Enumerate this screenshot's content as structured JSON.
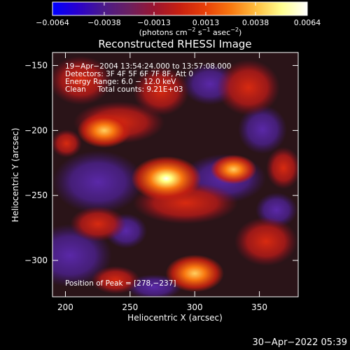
{
  "colorbar": {
    "colors": [
      "#0000ff",
      "#2a00cc",
      "#4a1a8a",
      "#6a2060",
      "#9a1530",
      "#c82010",
      "#e84008",
      "#f87810",
      "#ffc040",
      "#ffff90",
      "#ffffff"
    ],
    "tick_labels": [
      "−0.0064",
      "−0.0038",
      "−0.0013",
      "0.0013",
      "0.0038",
      "0.0064"
    ],
    "ticks": [
      -0.0064,
      -0.0038,
      -0.0013,
      0.0013,
      0.0038,
      0.0064
    ],
    "range": [
      -0.0064,
      0.0064
    ],
    "unit_label": "(photons cm",
    "unit_sup1": "−2",
    "unit_mid": " s",
    "unit_sup2": "−1",
    "unit_mid2": " asec",
    "unit_sup3": "−2",
    "unit_end": ")"
  },
  "chart_data": {
    "type": "heatmap",
    "title": "Reconstructed RHESSI Image",
    "xlabel": "Heliocentric X (arcsec)",
    "ylabel": "Heliocentric Y (arcsec)",
    "xlim": [
      190,
      380
    ],
    "ylim": [
      -328,
      -140
    ],
    "x_ticks": [
      200,
      250,
      300,
      350
    ],
    "y_ticks": [
      -150,
      -200,
      -250,
      -300
    ],
    "x_tick_labels": [
      "200",
      "250",
      "300",
      "350"
    ],
    "y_tick_labels": [
      "−150",
      "−200",
      "−250",
      "−300"
    ],
    "annotations": [
      "19−Apr−2004 13:54:24.000 to 13:57:08.000",
      "Detectors: 3F 4F 5F 6F 7F 8F, Att 0",
      "Energy Range: 6.0 − 12.0 keV",
      "Clean     Total counts: 9.21E+03"
    ],
    "peak_label": "Position of Peak = [278,−237]",
    "peak": [
      278,
      -237
    ],
    "sources": [
      {
        "x": 278,
        "y": -237,
        "value": 0.0064
      },
      {
        "x": 300,
        "y": -310,
        "value": 0.0045
      },
      {
        "x": 230,
        "y": -200,
        "value": 0.0038
      },
      {
        "x": 330,
        "y": -230,
        "value": 0.0025
      }
    ]
  },
  "footer": {
    "timestamp": "30−Apr−2022 05:39"
  }
}
